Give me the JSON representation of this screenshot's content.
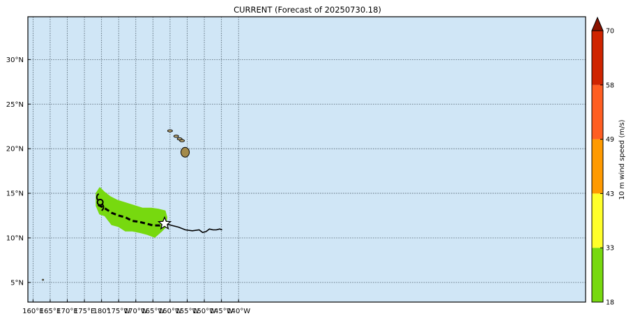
{
  "title": "CURRENT (Forecast of 20250730.18)",
  "map": {
    "lon_range_display": [
      158.5,
      321.3
    ],
    "lat_range": [
      2.8,
      34.8
    ],
    "x_ticks": [
      {
        "lon": 160,
        "label": "160°E"
      },
      {
        "lon": 165,
        "label": "165°E"
      },
      {
        "lon": 170,
        "label": "170°E"
      },
      {
        "lon": 175,
        "label": "175°E"
      },
      {
        "lon": 180,
        "label": "180°"
      },
      {
        "lon": 185,
        "label": "175°W"
      },
      {
        "lon": 190,
        "label": "170°W"
      },
      {
        "lon": 195,
        "label": "165°W"
      },
      {
        "lon": 200,
        "label": "160°W"
      },
      {
        "lon": 205,
        "label": "155°W"
      },
      {
        "lon": 210,
        "label": "150°W"
      },
      {
        "lon": 215,
        "label": "145°W"
      },
      {
        "lon": 220,
        "label": "140°W"
      }
    ],
    "y_ticks": [
      {
        "lat": 5,
        "label": "5°N"
      },
      {
        "lat": 10,
        "label": "10°N"
      },
      {
        "lat": 15,
        "label": "15°N"
      },
      {
        "lat": 20,
        "label": "20°N"
      },
      {
        "lat": 25,
        "label": "25°N"
      },
      {
        "lat": 30,
        "label": "30°N"
      }
    ],
    "ocean_color": "#d0e6f6",
    "grid": true,
    "storm_symbol": "tropical-cyclone-icon",
    "current_position_marker": "star-icon"
  },
  "colorbar": {
    "label": "10 m wind speed (m/s)",
    "bins": [
      {
        "min": 18,
        "max": 33,
        "color": "#77d90f"
      },
      {
        "min": 33,
        "max": 43,
        "color": "#ffff2a"
      },
      {
        "min": 43,
        "max": 49,
        "color": "#ff9a00"
      },
      {
        "min": 49,
        "max": 58,
        "color": "#ff5e22"
      },
      {
        "min": 58,
        "max": 70,
        "color": "#cf2400"
      }
    ],
    "overflow_color": "#8a1200",
    "tick_labels": [
      "18",
      "33",
      "43",
      "49",
      "58",
      "70"
    ]
  },
  "chart_data": {
    "type": "map",
    "title": "CURRENT (Forecast of 20250730.18)",
    "colorbar_label": "10 m wind speed (m/s)",
    "past_track": [
      {
        "lon": 179.0,
        "lat": 13.7
      },
      {
        "lon": 181.0,
        "lat": 13.3
      },
      {
        "lon": 183.0,
        "lat": 12.8
      },
      {
        "lon": 185.0,
        "lat": 12.5
      },
      {
        "lon": 187.0,
        "lat": 12.3
      },
      {
        "lon": 189.0,
        "lat": 11.9
      },
      {
        "lon": 191.0,
        "lat": 11.8
      },
      {
        "lon": 193.0,
        "lat": 11.6
      },
      {
        "lon": 195.0,
        "lat": 11.4
      },
      {
        "lon": 197.0,
        "lat": 11.4
      },
      {
        "lon": 198.4,
        "lat": 11.6
      }
    ],
    "forecast_track": [
      {
        "lon": 198.4,
        "lat": 11.6
      },
      {
        "lon": 200.5,
        "lat": 11.4
      },
      {
        "lon": 202.5,
        "lat": 11.2
      },
      {
        "lon": 204.5,
        "lat": 10.9
      },
      {
        "lon": 206.5,
        "lat": 10.8
      },
      {
        "lon": 208.5,
        "lat": 10.9
      },
      {
        "lon": 209.5,
        "lat": 10.6
      },
      {
        "lon": 210.5,
        "lat": 10.7
      },
      {
        "lon": 211.5,
        "lat": 11.0
      },
      {
        "lon": 212.5,
        "lat": 10.9
      },
      {
        "lon": 213.5,
        "lat": 10.9
      },
      {
        "lon": 214.5,
        "lat": 11.0
      },
      {
        "lon": 215.2,
        "lat": 10.9
      }
    ],
    "current_position": {
      "lon": 198.4,
      "lat": 11.6
    },
    "storm_symbol_position": {
      "lon": 179.6,
      "lat": 14.0
    },
    "wind_swath_18_33": [
      {
        "lon": 178.5,
        "lat": 15.0
      },
      {
        "lon": 179.5,
        "lat": 15.6
      },
      {
        "lon": 180.8,
        "lat": 15.1
      },
      {
        "lon": 182.5,
        "lat": 14.6
      },
      {
        "lon": 184.5,
        "lat": 14.2
      },
      {
        "lon": 187.0,
        "lat": 13.9
      },
      {
        "lon": 189.5,
        "lat": 13.6
      },
      {
        "lon": 192.0,
        "lat": 13.3
      },
      {
        "lon": 194.5,
        "lat": 13.3
      },
      {
        "lon": 196.5,
        "lat": 13.2
      },
      {
        "lon": 198.5,
        "lat": 13.0
      },
      {
        "lon": 199.0,
        "lat": 12.3
      },
      {
        "lon": 198.6,
        "lat": 11.2
      },
      {
        "lon": 197.3,
        "lat": 10.7
      },
      {
        "lon": 195.5,
        "lat": 10.1
      },
      {
        "lon": 193.5,
        "lat": 10.4
      },
      {
        "lon": 191.5,
        "lat": 10.6
      },
      {
        "lon": 189.0,
        "lat": 10.8
      },
      {
        "lon": 187.0,
        "lat": 10.8
      },
      {
        "lon": 185.0,
        "lat": 11.3
      },
      {
        "lon": 183.0,
        "lat": 11.5
      },
      {
        "lon": 181.0,
        "lat": 12.5
      },
      {
        "lon": 179.5,
        "lat": 12.7
      },
      {
        "lon": 178.5,
        "lat": 13.6
      }
    ],
    "islands": [
      {
        "name": "",
        "lon": 200.0,
        "lat": 22.0
      },
      {
        "name": "",
        "lon": 201.8,
        "lat": 21.4
      },
      {
        "name": "",
        "lon": 202.8,
        "lat": 21.1
      },
      {
        "name": "",
        "lon": 203.5,
        "lat": 20.9
      },
      {
        "name": "",
        "lon": 204.4,
        "lat": 19.6
      },
      {
        "name": "",
        "lon": 162.9,
        "lat": 5.3
      }
    ]
  }
}
